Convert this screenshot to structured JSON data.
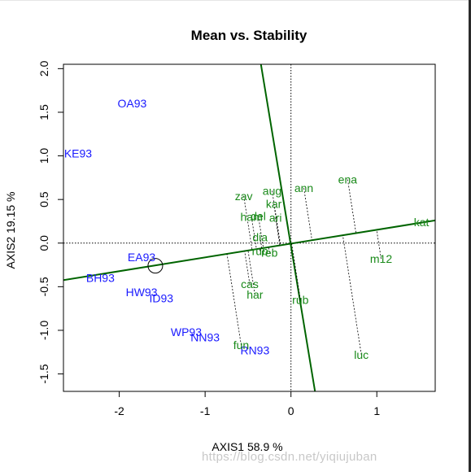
{
  "watermark": "https://blog.csdn.net/yiqiujuban",
  "chart_data": {
    "type": "scatter",
    "title": "Mean vs. Stability",
    "xlabel": "AXIS1 58.9 %",
    "ylabel": "AXIS2 19.15 %",
    "xlim": [
      -2.65,
      1.68
    ],
    "ylim": [
      -1.7,
      2.05
    ],
    "xticks": [
      -2,
      -1,
      0,
      1
    ],
    "yticks": [
      -1.5,
      -1.0,
      -0.5,
      0.0,
      0.5,
      1.0,
      1.5,
      2.0
    ],
    "ytick_labels": [
      "-1.5",
      "-1.0",
      "-0.5",
      "0.0",
      "0.5",
      "1.0",
      "1.5",
      "2.0"
    ],
    "xtick_labels": [
      "-2",
      "-1",
      "0",
      "1"
    ],
    "colors": {
      "environment": "#1a1aff",
      "genotype": "#1a8a1a",
      "axis_line": "#006400",
      "projection": "#000000"
    },
    "environments": [
      {
        "label": "OA93",
        "x": -1.85,
        "y": 1.6
      },
      {
        "label": "KE93",
        "x": -2.48,
        "y": 1.03
      },
      {
        "label": "EA93",
        "x": -1.74,
        "y": -0.16
      },
      {
        "label": "BH93",
        "x": -2.22,
        "y": -0.4
      },
      {
        "label": "HW93",
        "x": -1.74,
        "y": -0.56
      },
      {
        "label": "ID93",
        "x": -1.51,
        "y": -0.63
      },
      {
        "label": "WP93",
        "x": -1.22,
        "y": -1.02
      },
      {
        "label": "NN93",
        "x": -1.0,
        "y": -1.08
      },
      {
        "label": "RN93",
        "x": -0.42,
        "y": -1.23
      }
    ],
    "genotypes": [
      {
        "label": "zav",
        "x": -0.55,
        "y": 0.54
      },
      {
        "label": "aug",
        "x": -0.22,
        "y": 0.6
      },
      {
        "label": "ann",
        "x": 0.15,
        "y": 0.63
      },
      {
        "label": "ena",
        "x": 0.66,
        "y": 0.73
      },
      {
        "label": "kar",
        "x": -0.2,
        "y": 0.45
      },
      {
        "label": "ham",
        "x": -0.46,
        "y": 0.3
      },
      {
        "label": "del",
        "x": -0.38,
        "y": 0.31
      },
      {
        "label": "ari",
        "x": -0.18,
        "y": 0.29
      },
      {
        "label": "kat",
        "x": 1.52,
        "y": 0.24
      },
      {
        "label": "dia",
        "x": -0.36,
        "y": 0.07
      },
      {
        "label": "rub",
        "x": -0.36,
        "y": -0.09
      },
      {
        "label": "reb",
        "x": -0.25,
        "y": -0.11
      },
      {
        "label": "m12",
        "x": 1.05,
        "y": -0.18
      },
      {
        "label": "cas",
        "x": -0.48,
        "y": -0.47
      },
      {
        "label": "har",
        "x": -0.42,
        "y": -0.59
      },
      {
        "label": "rub",
        "x": 0.11,
        "y": -0.65
      },
      {
        "label": "fun",
        "x": -0.58,
        "y": -1.17
      },
      {
        "label": "luc",
        "x": 0.82,
        "y": -1.28
      }
    ],
    "mean_environment_marker": {
      "x": -1.58,
      "y": -0.26
    },
    "ate_axis": {
      "from": [
        -2.65,
        -0.425
      ],
      "to": [
        1.68,
        0.26
      ]
    },
    "ate_ordinate": {
      "from": [
        -0.35,
        2.05
      ],
      "to": [
        0.28,
        -1.7
      ]
    }
  }
}
